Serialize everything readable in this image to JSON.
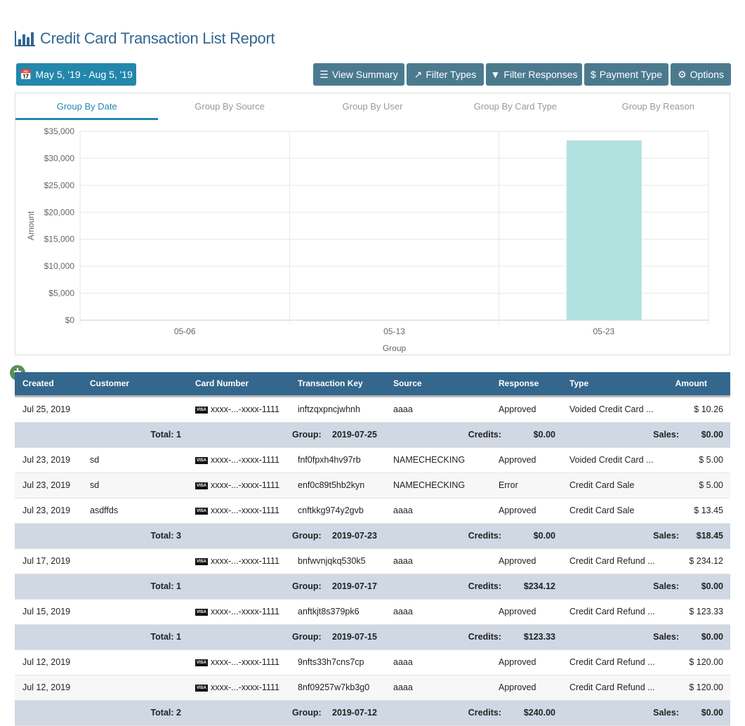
{
  "header": {
    "title": "Credit Card Transaction List Report",
    "icon": "bar-chart-icon"
  },
  "toolbar": {
    "date_range": "May 5, '19 - Aug 5, '19",
    "buttons": [
      {
        "label": "View Summary",
        "icon": "list-icon"
      },
      {
        "label": "Filter Types",
        "icon": "external-link-icon"
      },
      {
        "label": "Filter Responses",
        "icon": "filter-icon"
      },
      {
        "label": "Payment Type",
        "icon": "dollar-icon"
      },
      {
        "label": "Options",
        "icon": "gear-icon"
      }
    ]
  },
  "tabs": [
    {
      "label": "Group By Date",
      "active": true
    },
    {
      "label": "Group By Source"
    },
    {
      "label": "Group By User"
    },
    {
      "label": "Group By Card Type"
    },
    {
      "label": "Group By Reason"
    }
  ],
  "chart_data": {
    "type": "bar",
    "categories": [
      "05-06",
      "05-13",
      "05-23"
    ],
    "values": [
      0,
      0,
      33300
    ],
    "xlabel": "Group",
    "ylabel": "Amount",
    "ylim": [
      0,
      35000
    ],
    "yticks": [
      "$0",
      "$5,000",
      "$10,000",
      "$15,000",
      "$20,000",
      "$25,000",
      "$30,000",
      "$35,000"
    ],
    "grid": true,
    "color": "#b2e2e0"
  },
  "table": {
    "columns": [
      "Created",
      "Customer",
      "Card Number",
      "Transaction Key",
      "Source",
      "Response",
      "Type",
      "Amount"
    ],
    "rows": [
      {
        "kind": "data",
        "cells": [
          "Jul 25, 2019",
          "",
          "xxxx-...-xxxx-1111",
          "inftzqxpncjwhnh",
          "aaaa",
          "Approved",
          "Voided Credit Card ...",
          "$ 10.26"
        ]
      },
      {
        "kind": "total",
        "total": "Total: 1",
        "group_label": "Group:",
        "group": "2019-07-25",
        "credits_label": "Credits:",
        "credits": "$0.00",
        "sales_label": "Sales:",
        "sales": "$0.00"
      },
      {
        "kind": "data",
        "cells": [
          "Jul 23, 2019",
          "sd",
          "xxxx-...-xxxx-1111",
          "fnf0fpxh4hv97rb",
          "NAMECHECKING",
          "Approved",
          "Voided Credit Card ...",
          "$ 5.00"
        ]
      },
      {
        "kind": "data",
        "cells": [
          "Jul 23, 2019",
          "sd",
          "xxxx-...-xxxx-1111",
          "enf0c89t5hb2kyn",
          "NAMECHECKING",
          "Error",
          "Credit Card Sale",
          "$ 5.00"
        ]
      },
      {
        "kind": "data",
        "cells": [
          "Jul 23, 2019",
          "asdffds",
          "xxxx-...-xxxx-1111",
          "cnftkkg974y2gvb",
          "aaaa",
          "Approved",
          "Credit Card Sale",
          "$ 13.45"
        ]
      },
      {
        "kind": "total",
        "total": "Total: 3",
        "group_label": "Group:",
        "group": "2019-07-23",
        "credits_label": "Credits:",
        "credits": "$0.00",
        "sales_label": "Sales:",
        "sales": "$18.45"
      },
      {
        "kind": "data",
        "cells": [
          "Jul 17, 2019",
          "",
          "xxxx-...-xxxx-1111",
          "bnfwvnjqkq530k5",
          "aaaa",
          "Approved",
          "Credit Card Refund ...",
          "$ 234.12"
        ]
      },
      {
        "kind": "total",
        "total": "Total: 1",
        "group_label": "Group:",
        "group": "2019-07-17",
        "credits_label": "Credits:",
        "credits": "$234.12",
        "sales_label": "Sales:",
        "sales": "$0.00"
      },
      {
        "kind": "data",
        "cells": [
          "Jul 15, 2019",
          "",
          "xxxx-...-xxxx-1111",
          "anftkjt8s379pk6",
          "aaaa",
          "Approved",
          "Credit Card Refund ...",
          "$ 123.33"
        ]
      },
      {
        "kind": "total",
        "total": "Total: 1",
        "group_label": "Group:",
        "group": "2019-07-15",
        "credits_label": "Credits:",
        "credits": "$123.33",
        "sales_label": "Sales:",
        "sales": "$0.00"
      },
      {
        "kind": "data",
        "cells": [
          "Jul 12, 2019",
          "",
          "xxxx-...-xxxx-1111",
          "9nfts33h7cns7cp",
          "aaaa",
          "Approved",
          "Credit Card Refund ...",
          "$ 120.00"
        ]
      },
      {
        "kind": "data",
        "cells": [
          "Jul 12, 2019",
          "",
          "xxxx-...-xxxx-1111",
          "8nf09257w7kb3g0",
          "aaaa",
          "Approved",
          "Credit Card Refund ...",
          "$ 120.00"
        ]
      },
      {
        "kind": "total",
        "total": "Total: 2",
        "group_label": "Group:",
        "group": "2019-07-12",
        "credits_label": "Credits:",
        "credits": "$240.00",
        "sales_label": "Sales:",
        "sales": "$0.00"
      }
    ]
  },
  "card_brand": "VISA"
}
